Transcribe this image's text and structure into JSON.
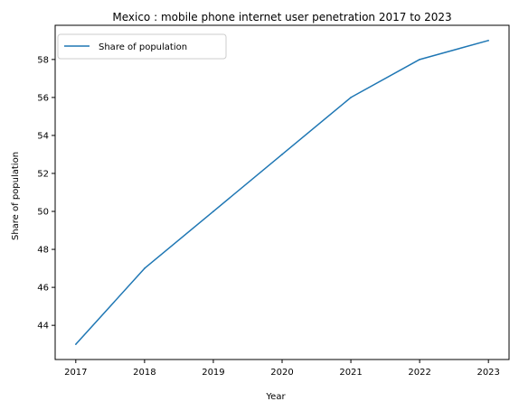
{
  "chart_data": {
    "type": "line",
    "title": "Mexico : mobile phone internet user penetration 2017 to 2023",
    "xlabel": "Year",
    "ylabel": "Share of population",
    "x": [
      2017,
      2018,
      2019,
      2020,
      2021,
      2022,
      2023
    ],
    "series": [
      {
        "name": "Share of population",
        "color": "#1f77b4",
        "values": [
          43,
          47,
          50,
          53,
          56,
          58,
          59
        ]
      }
    ],
    "xticks": [
      "2017",
      "2018",
      "2019",
      "2020",
      "2021",
      "2022",
      "2023"
    ],
    "yticks": [
      "44",
      "46",
      "48",
      "50",
      "52",
      "54",
      "56",
      "58"
    ],
    "xlim": [
      2016.7,
      2023.3
    ],
    "ylim": [
      42.2,
      59.8
    ],
    "grid": false,
    "legend_position": "top-left"
  }
}
